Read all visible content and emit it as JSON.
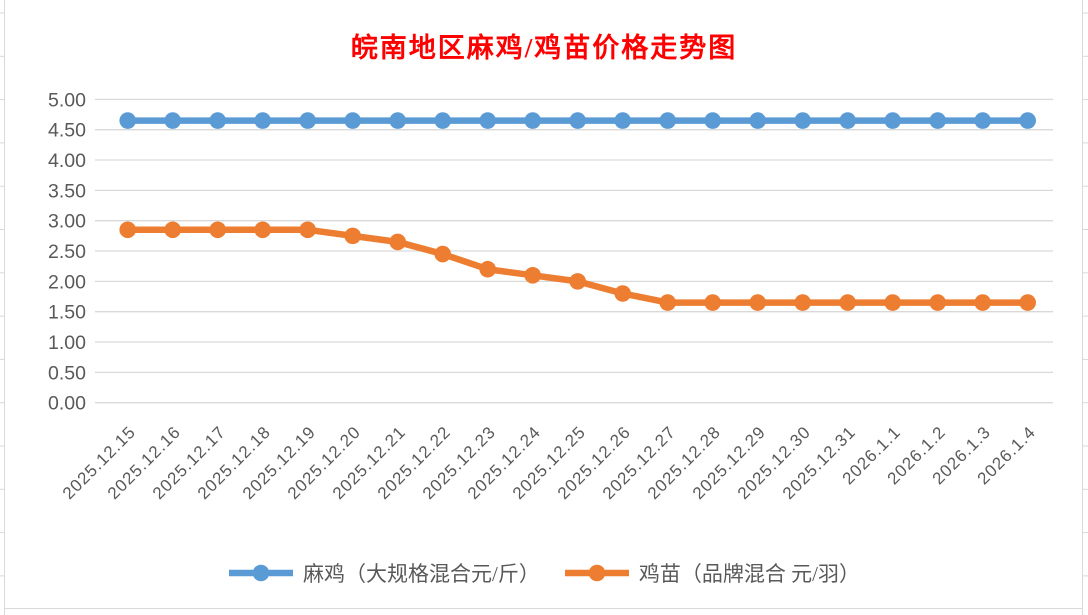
{
  "chart_data": {
    "type": "line",
    "title": "皖南地区麻鸡/鸡苗价格走势图",
    "title_color": "#ff0000",
    "categories": [
      "2025.12.15",
      "2025.12.16",
      "2025.12.17",
      "2025.12.18",
      "2025.12.19",
      "2025.12.20",
      "2025.12.21",
      "2025.12.22",
      "2025.12.23",
      "2025.12.24",
      "2025.12.25",
      "2025.12.26",
      "2025.12.27",
      "2025.12.28",
      "2025.12.29",
      "2025.12.30",
      "2025.12.31",
      "2026.1.1",
      "2026.1.2",
      "2026.1.3",
      "2026.1.4"
    ],
    "series": [
      {
        "name": "麻鸡（大规格混合元/斤）",
        "color": "#5B9BD5",
        "values": [
          4.65,
          4.65,
          4.65,
          4.65,
          4.65,
          4.65,
          4.65,
          4.65,
          4.65,
          4.65,
          4.65,
          4.65,
          4.65,
          4.65,
          4.65,
          4.65,
          4.65,
          4.65,
          4.65,
          4.65,
          4.65
        ]
      },
      {
        "name": "鸡苗（品牌混合 元/羽）",
        "color": "#ED7D31",
        "values": [
          2.85,
          2.85,
          2.85,
          2.85,
          2.85,
          2.75,
          2.65,
          2.45,
          2.2,
          2.1,
          2.0,
          1.8,
          1.65,
          1.65,
          1.65,
          1.65,
          1.65,
          1.65,
          1.65,
          1.65,
          1.65
        ]
      }
    ],
    "xlabel": "",
    "ylabel": "",
    "ylim": [
      0,
      5
    ],
    "ytick_step": 0.5,
    "ytick_labels": [
      "0.00",
      "0.50",
      "1.00",
      "1.50",
      "2.00",
      "2.50",
      "3.00",
      "3.50",
      "4.00",
      "4.50",
      "5.00"
    ],
    "grid": "horizontal",
    "gridline_color": "#d9d9d9",
    "axis_text_color": "#595959",
    "legend_position": "bottom",
    "marker": "circle"
  }
}
